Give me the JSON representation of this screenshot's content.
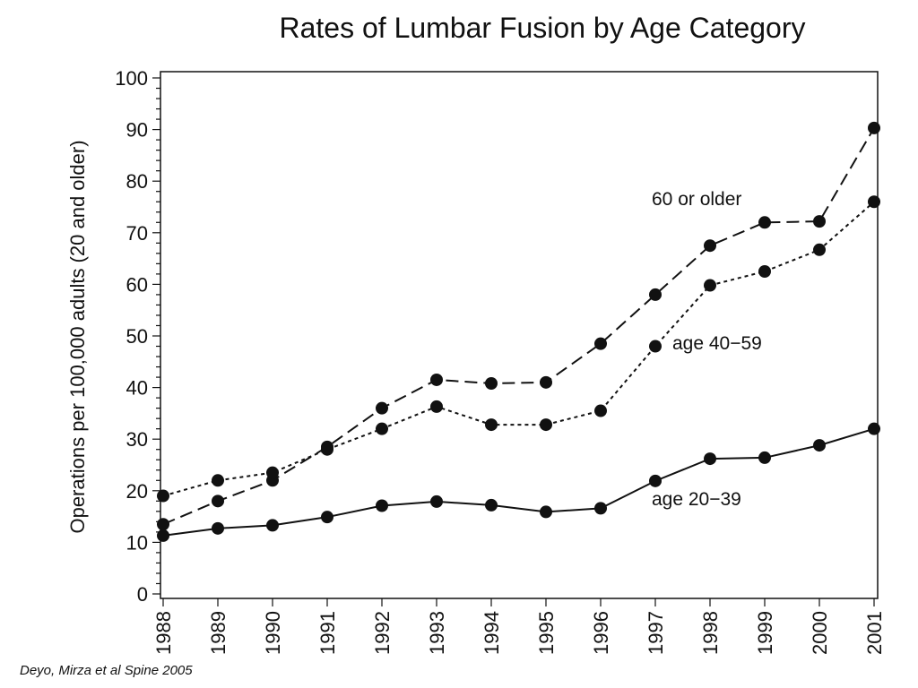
{
  "chart_data": {
    "type": "line",
    "title": "Rates of Lumbar Fusion by Age Category",
    "xlabel": "",
    "ylabel": "Operations per 100,000 adults (20 and older)",
    "x": [
      "1988",
      "1989",
      "1990",
      "1991",
      "1992",
      "1993",
      "1994",
      "1995",
      "1996",
      "1997",
      "1998",
      "1999",
      "2000",
      "2001"
    ],
    "ylim": [
      0,
      100
    ],
    "yticks": [
      "0",
      "10",
      "20",
      "30",
      "40",
      "50",
      "60",
      "70",
      "80",
      "90",
      "100"
    ],
    "grid": false,
    "series": [
      {
        "name": "60 or older",
        "style": "dashed",
        "color": "#111111",
        "values": [
          13.5,
          18,
          22,
          28.5,
          36,
          41.5,
          40.8,
          41,
          48.5,
          58,
          67.5,
          72,
          72.2,
          90.3
        ]
      },
      {
        "name": "age 40−59",
        "style": "dotted",
        "color": "#111111",
        "values": [
          19,
          22,
          23.5,
          28,
          32,
          36.3,
          32.8,
          32.8,
          35.5,
          48,
          59.8,
          62.5,
          66.7,
          76
        ]
      },
      {
        "name": "age 20−39",
        "style": "solid",
        "color": "#111111",
        "values": [
          11.3,
          12.7,
          13.3,
          14.9,
          17.1,
          17.9,
          17.2,
          15.9,
          16.6,
          21.9,
          26.2,
          26.4,
          28.8,
          32
        ]
      }
    ]
  },
  "citation": "Deyo, Mirza et al  Spine 2005"
}
